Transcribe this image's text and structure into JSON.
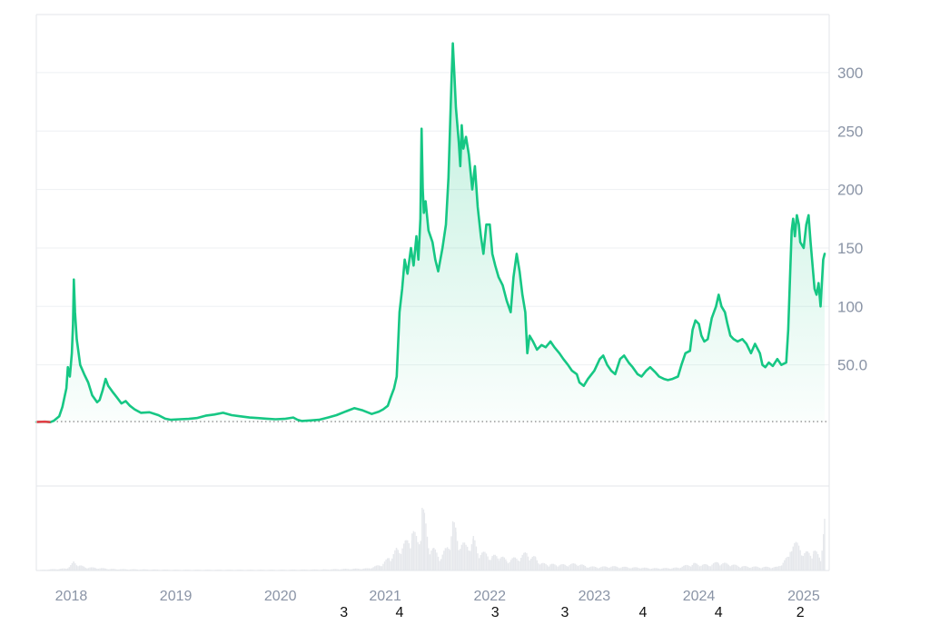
{
  "chart_data": {
    "type": "area",
    "title": "",
    "xlabel": "",
    "ylabel": "",
    "x_range": [
      "2017-09-01",
      "2025-03-31"
    ],
    "ylim": [
      0,
      345
    ],
    "yticks": [
      50,
      100,
      150,
      200,
      250,
      300
    ],
    "ytick_labels": [
      "50.0",
      "100",
      "150",
      "200",
      "250",
      "300"
    ],
    "xticks": [
      "2018-01-01",
      "2019-01-01",
      "2020-01-01",
      "2021-01-01",
      "2022-01-01",
      "2023-01-01",
      "2024-01-01",
      "2025-01-01"
    ],
    "xtick_labels": [
      "2018",
      "2019",
      "2020",
      "2021",
      "2022",
      "2023",
      "2024",
      "2025"
    ],
    "baseline": 1.5,
    "grid": true,
    "legend": "none",
    "colors": {
      "line": "#16c784",
      "area_top": "#16c784",
      "negative": "#ea3943",
      "volume": "#e6e8ec",
      "baseline": "#777777"
    },
    "series": [
      {
        "values": [
          [
            "2017-09-01",
            1.2
          ],
          [
            "2017-10-01",
            1.4
          ],
          [
            "2017-10-20",
            1.0
          ],
          [
            "2017-11-01",
            2.2
          ],
          [
            "2017-11-20",
            6
          ],
          [
            "2017-12-01",
            14
          ],
          [
            "2017-12-15",
            30
          ],
          [
            "2017-12-20",
            48
          ],
          [
            "2017-12-27",
            40
          ],
          [
            "2018-01-03",
            60
          ],
          [
            "2018-01-07",
            85
          ],
          [
            "2018-01-10",
            123
          ],
          [
            "2018-01-14",
            95
          ],
          [
            "2018-01-20",
            72
          ],
          [
            "2018-02-01",
            50
          ],
          [
            "2018-02-15",
            42
          ],
          [
            "2018-03-01",
            35
          ],
          [
            "2018-03-15",
            24
          ],
          [
            "2018-04-01",
            18
          ],
          [
            "2018-04-10",
            20
          ],
          [
            "2018-04-20",
            28
          ],
          [
            "2018-05-01",
            38
          ],
          [
            "2018-05-10",
            32
          ],
          [
            "2018-05-25",
            27
          ],
          [
            "2018-06-10",
            22
          ],
          [
            "2018-06-25",
            17
          ],
          [
            "2018-07-10",
            19
          ],
          [
            "2018-07-25",
            15
          ],
          [
            "2018-08-10",
            12
          ],
          [
            "2018-09-01",
            9
          ],
          [
            "2018-10-01",
            9.5
          ],
          [
            "2018-11-01",
            7
          ],
          [
            "2018-11-25",
            4
          ],
          [
            "2018-12-15",
            3
          ],
          [
            "2019-01-15",
            3.5
          ],
          [
            "2019-02-15",
            3.8
          ],
          [
            "2019-03-15",
            4.5
          ],
          [
            "2019-04-15",
            6.5
          ],
          [
            "2019-05-15",
            7.5
          ],
          [
            "2019-06-15",
            9
          ],
          [
            "2019-07-15",
            7
          ],
          [
            "2019-08-15",
            6
          ],
          [
            "2019-09-15",
            5
          ],
          [
            "2019-10-15",
            4.5
          ],
          [
            "2019-11-15",
            4
          ],
          [
            "2019-12-15",
            3.5
          ],
          [
            "2020-01-15",
            3.8
          ],
          [
            "2020-02-15",
            5
          ],
          [
            "2020-03-01",
            3
          ],
          [
            "2020-03-15",
            2
          ],
          [
            "2020-04-15",
            2.5
          ],
          [
            "2020-05-15",
            3
          ],
          [
            "2020-06-15",
            5
          ],
          [
            "2020-07-15",
            7
          ],
          [
            "2020-08-15",
            10
          ],
          [
            "2020-09-15",
            13
          ],
          [
            "2020-10-15",
            11
          ],
          [
            "2020-11-15",
            8
          ],
          [
            "2020-12-10",
            10
          ],
          [
            "2020-12-25",
            12
          ],
          [
            "2021-01-10",
            15
          ],
          [
            "2021-01-20",
            22
          ],
          [
            "2021-02-01",
            30
          ],
          [
            "2021-02-10",
            40
          ],
          [
            "2021-02-20",
            95
          ],
          [
            "2021-03-01",
            115
          ],
          [
            "2021-03-10",
            140
          ],
          [
            "2021-03-20",
            128
          ],
          [
            "2021-04-01",
            150
          ],
          [
            "2021-04-10",
            135
          ],
          [
            "2021-04-20",
            160
          ],
          [
            "2021-04-27",
            140
          ],
          [
            "2021-05-04",
            175
          ],
          [
            "2021-05-08",
            252
          ],
          [
            "2021-05-12",
            200
          ],
          [
            "2021-05-16",
            180
          ],
          [
            "2021-05-22",
            190
          ],
          [
            "2021-06-01",
            165
          ],
          [
            "2021-06-15",
            155
          ],
          [
            "2021-06-25",
            140
          ],
          [
            "2021-07-05",
            130
          ],
          [
            "2021-07-20",
            150
          ],
          [
            "2021-08-01",
            170
          ],
          [
            "2021-08-10",
            210
          ],
          [
            "2021-08-15",
            250
          ],
          [
            "2021-08-20",
            290
          ],
          [
            "2021-08-25",
            325
          ],
          [
            "2021-08-30",
            300
          ],
          [
            "2021-09-05",
            270
          ],
          [
            "2021-09-15",
            240
          ],
          [
            "2021-09-20",
            220
          ],
          [
            "2021-09-25",
            255
          ],
          [
            "2021-10-01",
            235
          ],
          [
            "2021-10-10",
            245
          ],
          [
            "2021-10-20",
            230
          ],
          [
            "2021-11-01",
            200
          ],
          [
            "2021-11-10",
            220
          ],
          [
            "2021-11-20",
            185
          ],
          [
            "2021-12-01",
            160
          ],
          [
            "2021-12-10",
            145
          ],
          [
            "2021-12-20",
            170
          ],
          [
            "2022-01-01",
            170
          ],
          [
            "2022-01-10",
            145
          ],
          [
            "2022-01-20",
            135
          ],
          [
            "2022-02-01",
            125
          ],
          [
            "2022-02-15",
            118
          ],
          [
            "2022-03-01",
            105
          ],
          [
            "2022-03-15",
            95
          ],
          [
            "2022-03-25",
            125
          ],
          [
            "2022-04-05",
            145
          ],
          [
            "2022-04-15",
            130
          ],
          [
            "2022-04-25",
            110
          ],
          [
            "2022-05-05",
            95
          ],
          [
            "2022-05-12",
            60
          ],
          [
            "2022-05-20",
            75
          ],
          [
            "2022-06-01",
            70
          ],
          [
            "2022-06-15",
            63
          ],
          [
            "2022-07-01",
            67
          ],
          [
            "2022-07-15",
            65
          ],
          [
            "2022-08-01",
            70
          ],
          [
            "2022-08-15",
            65
          ],
          [
            "2022-09-01",
            60
          ],
          [
            "2022-09-15",
            55
          ],
          [
            "2022-10-01",
            50
          ],
          [
            "2022-10-15",
            45
          ],
          [
            "2022-11-01",
            42
          ],
          [
            "2022-11-10",
            35
          ],
          [
            "2022-11-25",
            32
          ],
          [
            "2022-12-10",
            38
          ],
          [
            "2023-01-01",
            45
          ],
          [
            "2023-01-20",
            55
          ],
          [
            "2023-02-01",
            58
          ],
          [
            "2023-02-15",
            50
          ],
          [
            "2023-03-01",
            45
          ],
          [
            "2023-03-15",
            42
          ],
          [
            "2023-04-01",
            55
          ],
          [
            "2023-04-15",
            58
          ],
          [
            "2023-05-01",
            52
          ],
          [
            "2023-05-15",
            48
          ],
          [
            "2023-06-01",
            42
          ],
          [
            "2023-06-15",
            40
          ],
          [
            "2023-07-01",
            45
          ],
          [
            "2023-07-15",
            48
          ],
          [
            "2023-08-01",
            44
          ],
          [
            "2023-08-15",
            40
          ],
          [
            "2023-09-01",
            38
          ],
          [
            "2023-09-15",
            37
          ],
          [
            "2023-10-01",
            38
          ],
          [
            "2023-10-20",
            40
          ],
          [
            "2023-11-01",
            50
          ],
          [
            "2023-11-15",
            60
          ],
          [
            "2023-12-01",
            62
          ],
          [
            "2023-12-10",
            80
          ],
          [
            "2023-12-20",
            88
          ],
          [
            "2024-01-01",
            85
          ],
          [
            "2024-01-10",
            75
          ],
          [
            "2024-01-20",
            70
          ],
          [
            "2024-02-01",
            72
          ],
          [
            "2024-02-15",
            90
          ],
          [
            "2024-03-01",
            100
          ],
          [
            "2024-03-10",
            110
          ],
          [
            "2024-03-20",
            100
          ],
          [
            "2024-04-01",
            95
          ],
          [
            "2024-04-10",
            85
          ],
          [
            "2024-04-20",
            75
          ],
          [
            "2024-05-01",
            72
          ],
          [
            "2024-05-15",
            70
          ],
          [
            "2024-06-01",
            72
          ],
          [
            "2024-06-15",
            68
          ],
          [
            "2024-07-01",
            60
          ],
          [
            "2024-07-15",
            68
          ],
          [
            "2024-08-01",
            60
          ],
          [
            "2024-08-10",
            50
          ],
          [
            "2024-08-20",
            48
          ],
          [
            "2024-09-01",
            52
          ],
          [
            "2024-09-15",
            49
          ],
          [
            "2024-10-01",
            55
          ],
          [
            "2024-10-15",
            50
          ],
          [
            "2024-11-01",
            52
          ],
          [
            "2024-11-08",
            80
          ],
          [
            "2024-11-15",
            130
          ],
          [
            "2024-11-20",
            165
          ],
          [
            "2024-11-25",
            175
          ],
          [
            "2024-12-01",
            160
          ],
          [
            "2024-12-08",
            178
          ],
          [
            "2024-12-15",
            170
          ],
          [
            "2024-12-20",
            155
          ],
          [
            "2025-01-01",
            150
          ],
          [
            "2025-01-10",
            170
          ],
          [
            "2025-01-18",
            178
          ],
          [
            "2025-01-25",
            155
          ],
          [
            "2025-02-01",
            135
          ],
          [
            "2025-02-08",
            115
          ],
          [
            "2025-02-15",
            110
          ],
          [
            "2025-02-22",
            120
          ],
          [
            "2025-03-01",
            100
          ],
          [
            "2025-03-10",
            140
          ],
          [
            "2025-03-15",
            145
          ]
        ]
      }
    ],
    "volume_series": [
      [
        "2017-09-01",
        0.5
      ],
      [
        "2017-12-15",
        3
      ],
      [
        "2018-01-10",
        12
      ],
      [
        "2018-02-15",
        5
      ],
      [
        "2018-06-01",
        2
      ],
      [
        "2019-01-01",
        1
      ],
      [
        "2020-01-01",
        1
      ],
      [
        "2020-06-01",
        1.5
      ],
      [
        "2020-11-01",
        3
      ],
      [
        "2020-12-15",
        8
      ],
      [
        "2021-01-15",
        18
      ],
      [
        "2021-02-10",
        30
      ],
      [
        "2021-02-25",
        35
      ],
      [
        "2021-03-15",
        40
      ],
      [
        "2021-04-05",
        55
      ],
      [
        "2021-04-25",
        45
      ],
      [
        "2021-05-05",
        60
      ],
      [
        "2021-05-10",
        100
      ],
      [
        "2021-05-18",
        75
      ],
      [
        "2021-06-01",
        40
      ],
      [
        "2021-06-20",
        30
      ],
      [
        "2021-07-10",
        20
      ],
      [
        "2021-08-01",
        30
      ],
      [
        "2021-08-15",
        45
      ],
      [
        "2021-08-25",
        70
      ],
      [
        "2021-09-05",
        55
      ],
      [
        "2021-09-20",
        40
      ],
      [
        "2021-10-10",
        35
      ],
      [
        "2021-11-05",
        45
      ],
      [
        "2021-11-20",
        30
      ],
      [
        "2021-12-10",
        25
      ],
      [
        "2022-01-10",
        20
      ],
      [
        "2022-02-01",
        22
      ],
      [
        "2022-03-01",
        15
      ],
      [
        "2022-04-05",
        18
      ],
      [
        "2022-05-10",
        25
      ],
      [
        "2022-06-10",
        18
      ],
      [
        "2022-07-01",
        10
      ],
      [
        "2022-08-01",
        9
      ],
      [
        "2022-09-01",
        8
      ],
      [
        "2022-11-10",
        10
      ],
      [
        "2022-12-01",
        6
      ],
      [
        "2023-01-15",
        5
      ],
      [
        "2023-03-01",
        6
      ],
      [
        "2023-04-15",
        5
      ],
      [
        "2023-06-15",
        4
      ],
      [
        "2023-08-15",
        3
      ],
      [
        "2023-10-15",
        4
      ],
      [
        "2023-12-15",
        10
      ],
      [
        "2024-02-01",
        8
      ],
      [
        "2024-03-10",
        12
      ],
      [
        "2024-04-15",
        9
      ],
      [
        "2024-06-01",
        6
      ],
      [
        "2024-08-10",
        5
      ],
      [
        "2024-10-01",
        5
      ],
      [
        "2024-11-10",
        20
      ],
      [
        "2024-11-20",
        45
      ],
      [
        "2024-12-05",
        38
      ],
      [
        "2025-01-10",
        25
      ],
      [
        "2025-02-05",
        28
      ],
      [
        "2025-03-01",
        20
      ],
      [
        "2025-03-15",
        70
      ]
    ],
    "volume_max": 105,
    "event_markers": [
      {
        "date": "2020-08-10",
        "label": "3"
      },
      {
        "date": "2021-02-20",
        "label": "4"
      },
      {
        "date": "2022-01-20",
        "label": "3"
      },
      {
        "date": "2022-09-20",
        "label": "3"
      },
      {
        "date": "2023-06-20",
        "label": "4"
      },
      {
        "date": "2024-03-10",
        "label": "4"
      },
      {
        "date": "2024-12-20",
        "label": "2"
      }
    ]
  }
}
